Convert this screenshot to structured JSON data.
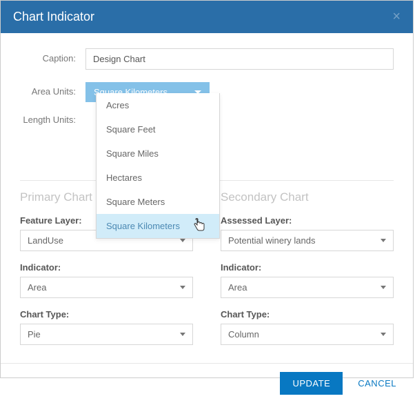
{
  "dialog": {
    "title": "Chart Indicator",
    "close_glyph": "×"
  },
  "form": {
    "caption_label": "Caption:",
    "caption_value": "Design Chart",
    "area_units_label": "Area Units:",
    "area_units_selected": "Square Kilometers",
    "area_units_options": [
      "Acres",
      "Square Feet",
      "Square Miles",
      "Hectares",
      "Square Meters",
      "Square Kilometers"
    ],
    "area_units_highlight_index": 5,
    "length_units_label": "Length Units:"
  },
  "primary": {
    "title": "Primary Chart",
    "feature_layer_label": "Feature Layer:",
    "feature_layer_value": "LandUse",
    "indicator_label": "Indicator:",
    "indicator_value": "Area",
    "chart_type_label": "Chart Type:",
    "chart_type_value": "Pie"
  },
  "secondary": {
    "title": "Secondary Chart",
    "assessed_layer_label": "Assessed Layer:",
    "assessed_layer_value": "Potential winery lands",
    "indicator_label": "Indicator:",
    "indicator_value": "Area",
    "chart_type_label": "Chart Type:",
    "chart_type_value": "Column"
  },
  "footer": {
    "update": "UPDATE",
    "cancel": "CANCEL"
  },
  "colors": {
    "titlebar_bg": "#2a6ea8",
    "dropdown_selected_bg": "#84c1e8",
    "dropdown_highlight_bg": "#d1ecf9",
    "primary_btn_bg": "#0878c2",
    "border": "#d6d6d6",
    "muted_text": "#777"
  }
}
